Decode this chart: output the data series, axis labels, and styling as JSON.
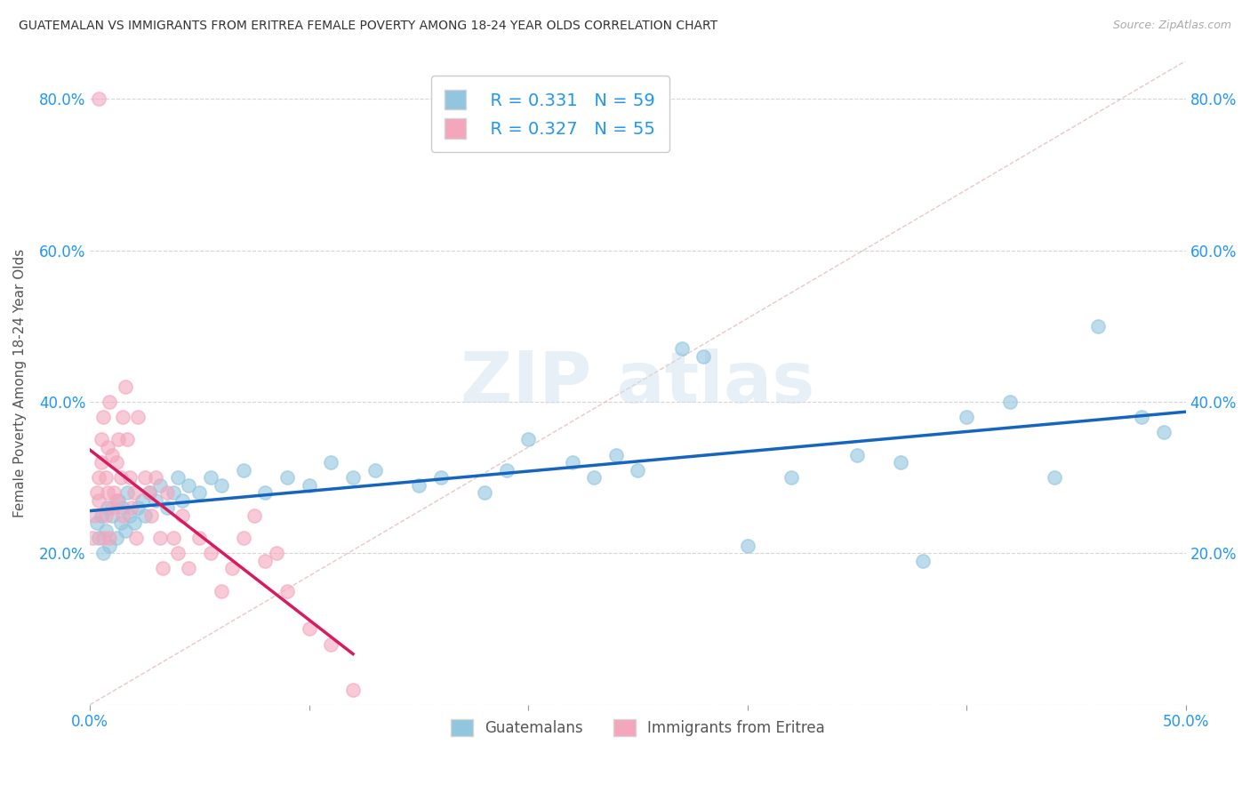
{
  "title": "GUATEMALAN VS IMMIGRANTS FROM ERITREA FEMALE POVERTY AMONG 18-24 YEAR OLDS CORRELATION CHART",
  "source": "Source: ZipAtlas.com",
  "ylabel": "Female Poverty Among 18-24 Year Olds",
  "xlim": [
    0.0,
    0.5
  ],
  "ylim": [
    0.0,
    0.85
  ],
  "xticks": [
    0.0,
    0.1,
    0.2,
    0.3,
    0.4,
    0.5
  ],
  "xticklabels": [
    "0.0%",
    "",
    "",
    "",
    "",
    "50.0%"
  ],
  "yticks": [
    0.0,
    0.2,
    0.4,
    0.6,
    0.8
  ],
  "yticklabels": [
    "",
    "20.0%",
    "40.0%",
    "60.0%",
    "80.0%"
  ],
  "r_guatemalan": 0.331,
  "n_guatemalan": 59,
  "r_eritrea": 0.327,
  "n_eritrea": 55,
  "color_guatemalan": "#92c5de",
  "color_eritrea": "#f4a6bc",
  "trendline_color_guatemalan": "#1565c0",
  "trendline_color_eritrea": "#d81b60",
  "background_color": "#ffffff",
  "watermark_text": "ZIPatlas",
  "guat_x": [
    0.003,
    0.004,
    0.005,
    0.006,
    0.007,
    0.008,
    0.009,
    0.01,
    0.012,
    0.013,
    0.014,
    0.015,
    0.016,
    0.017,
    0.018,
    0.02,
    0.022,
    0.024,
    0.025,
    0.027,
    0.03,
    0.032,
    0.035,
    0.038,
    0.04,
    0.042,
    0.045,
    0.05,
    0.055,
    0.06,
    0.07,
    0.08,
    0.09,
    0.1,
    0.11,
    0.12,
    0.13,
    0.15,
    0.16,
    0.18,
    0.19,
    0.2,
    0.22,
    0.23,
    0.24,
    0.25,
    0.27,
    0.28,
    0.3,
    0.32,
    0.35,
    0.37,
    0.38,
    0.4,
    0.42,
    0.44,
    0.46,
    0.48,
    0.49
  ],
  "guat_y": [
    0.24,
    0.22,
    0.25,
    0.2,
    0.23,
    0.26,
    0.21,
    0.25,
    0.22,
    0.27,
    0.24,
    0.26,
    0.23,
    0.28,
    0.25,
    0.24,
    0.26,
    0.27,
    0.25,
    0.28,
    0.27,
    0.29,
    0.26,
    0.28,
    0.3,
    0.27,
    0.29,
    0.28,
    0.3,
    0.29,
    0.31,
    0.28,
    0.3,
    0.29,
    0.32,
    0.3,
    0.31,
    0.29,
    0.3,
    0.28,
    0.31,
    0.35,
    0.32,
    0.3,
    0.33,
    0.31,
    0.47,
    0.46,
    0.21,
    0.3,
    0.33,
    0.32,
    0.19,
    0.38,
    0.4,
    0.3,
    0.5,
    0.38,
    0.36
  ],
  "erit_x": [
    0.001,
    0.002,
    0.003,
    0.004,
    0.004,
    0.005,
    0.005,
    0.006,
    0.006,
    0.007,
    0.007,
    0.008,
    0.008,
    0.009,
    0.009,
    0.01,
    0.01,
    0.011,
    0.012,
    0.012,
    0.013,
    0.014,
    0.015,
    0.015,
    0.016,
    0.017,
    0.018,
    0.019,
    0.02,
    0.021,
    0.022,
    0.025,
    0.027,
    0.028,
    0.03,
    0.032,
    0.033,
    0.035,
    0.038,
    0.04,
    0.042,
    0.045,
    0.05,
    0.055,
    0.06,
    0.065,
    0.07,
    0.075,
    0.08,
    0.085,
    0.09,
    0.1,
    0.11,
    0.12,
    0.004
  ],
  "erit_y": [
    0.22,
    0.25,
    0.28,
    0.3,
    0.27,
    0.32,
    0.35,
    0.22,
    0.38,
    0.25,
    0.3,
    0.28,
    0.34,
    0.22,
    0.4,
    0.26,
    0.33,
    0.28,
    0.32,
    0.27,
    0.35,
    0.3,
    0.25,
    0.38,
    0.42,
    0.35,
    0.3,
    0.26,
    0.28,
    0.22,
    0.38,
    0.3,
    0.28,
    0.25,
    0.3,
    0.22,
    0.18,
    0.28,
    0.22,
    0.2,
    0.25,
    0.18,
    0.22,
    0.2,
    0.15,
    0.18,
    0.22,
    0.25,
    0.19,
    0.2,
    0.15,
    0.1,
    0.08,
    0.02,
    0.8
  ]
}
